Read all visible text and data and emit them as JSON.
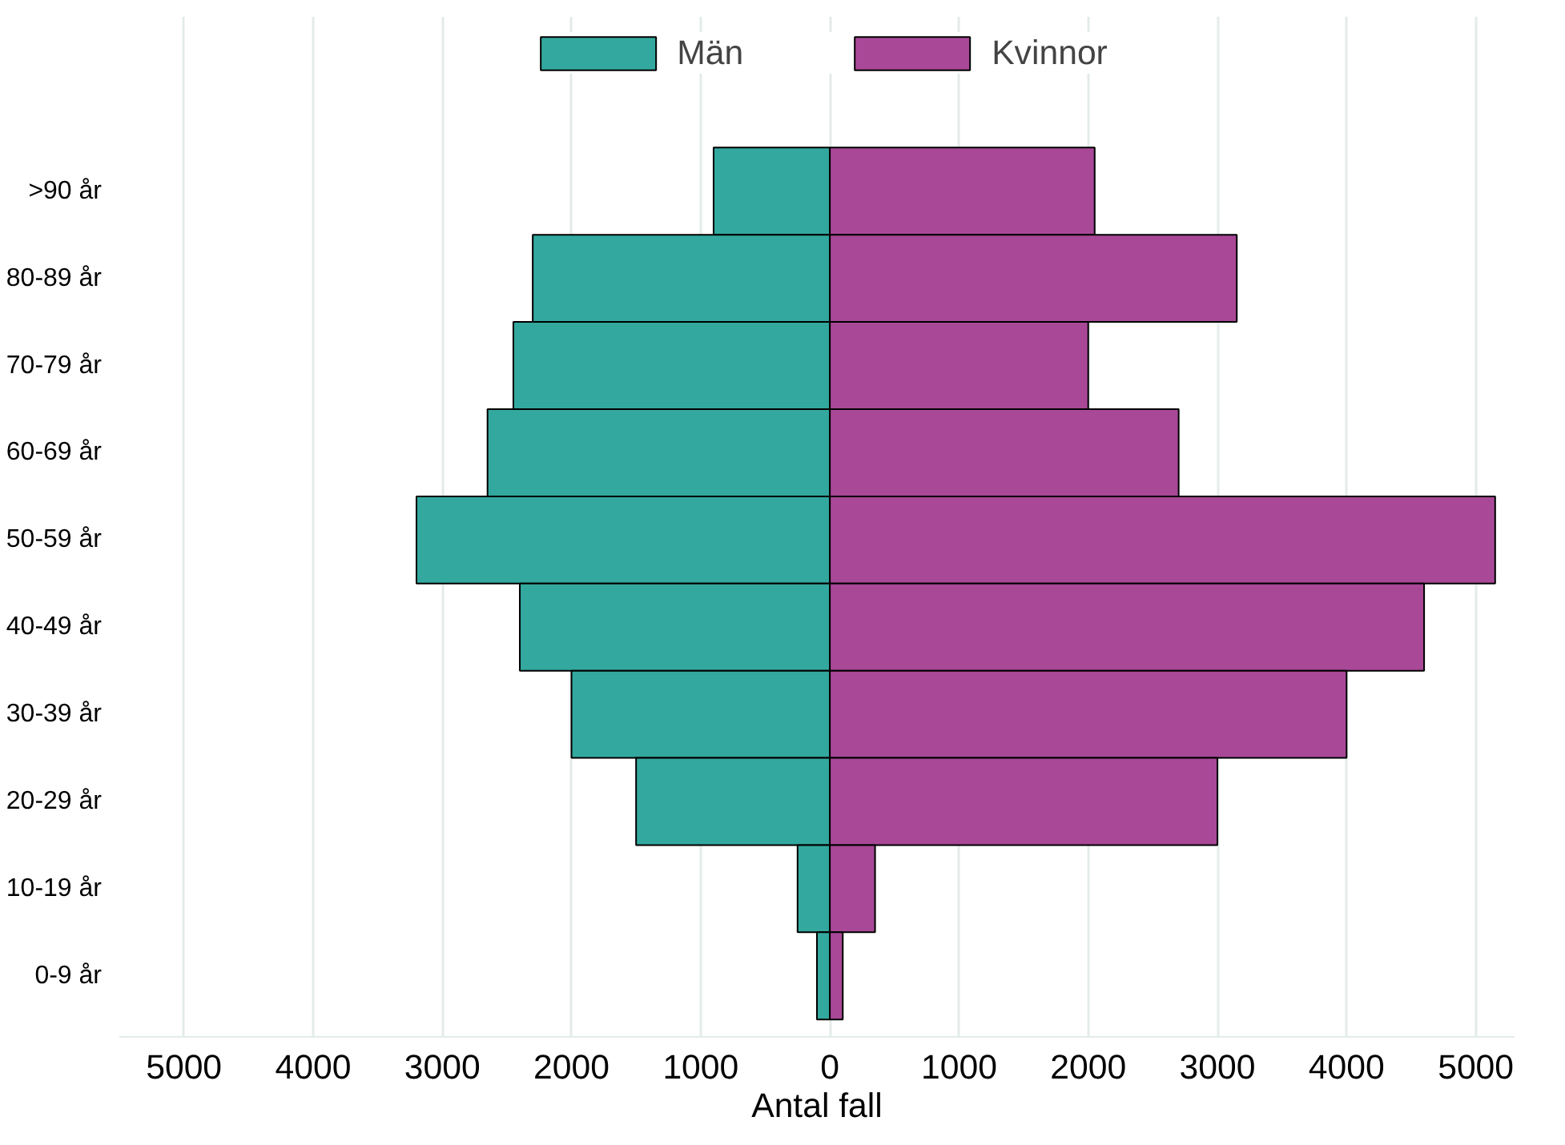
{
  "chart_data": {
    "type": "bar",
    "orientation": "horizontal",
    "stacked": true,
    "xlabel": "Antal fall",
    "categories": [
      ">90 år",
      "80-89 år",
      "70-79 år",
      "60-69 år",
      "50-59 år",
      "40-49 år",
      "30-39 år",
      "20-29 år",
      "10-19 år",
      "0-9 år"
    ],
    "series": [
      {
        "name": "Män",
        "color": "#33a89e",
        "values": [
          -900,
          -2300,
          -2450,
          -2650,
          -3200,
          -2400,
          -2000,
          -1500,
          -250,
          -100
        ]
      },
      {
        "name": "Kvinnor",
        "color": "#a84897",
        "values": [
          2050,
          3150,
          2000,
          2700,
          5150,
          4600,
          4000,
          3000,
          350,
          100
        ]
      }
    ],
    "xlim": [
      -5500,
      5300
    ],
    "xticks": [
      {
        "value": -5000,
        "label": "5000"
      },
      {
        "value": -4000,
        "label": "4000"
      },
      {
        "value": -3000,
        "label": "3000"
      },
      {
        "value": -2000,
        "label": "2000"
      },
      {
        "value": -1000,
        "label": "1000"
      },
      0,
      1000,
      2000,
      3000,
      4000,
      5000
    ],
    "grid": "x",
    "legend": "top"
  }
}
